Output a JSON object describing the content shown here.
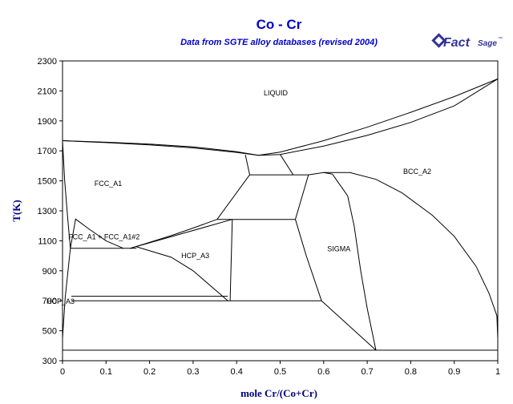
{
  "colors": {
    "title": "#0000cc",
    "axis_label": "#00007f",
    "logo": "#333399",
    "lines": "#000000"
  },
  "logo": {
    "text_main": "Fact",
    "text_small": "Sage",
    "mark": "™",
    "icon": "factsage-logo-icon"
  },
  "chart_data": {
    "type": "phase-diagram",
    "title": "Co - Cr",
    "subtitle": "Data from SGTE alloy databases (revised 2004)",
    "xlabel": "mole Cr/(Co+Cr)",
    "ylabel": "T(K)",
    "xlim": [
      0,
      1
    ],
    "ylim": [
      300,
      2300
    ],
    "xticks": [
      0,
      0.1,
      0.2,
      0.3,
      0.4,
      0.5,
      0.6,
      0.7,
      0.8,
      0.9,
      1
    ],
    "xtick_labels": [
      "0",
      "0.1",
      "0.2",
      "0.3",
      "0.4",
      "0.5",
      "0.6",
      "0.7",
      "0.8",
      "0.9",
      "1"
    ],
    "yticks": [
      300,
      500,
      700,
      900,
      1100,
      1300,
      1500,
      1700,
      1900,
      2100,
      2300
    ],
    "ytick_labels": [
      "300",
      "500",
      "700",
      "900",
      "1100",
      "1300",
      "1500",
      "1700",
      "1900",
      "2100",
      "2300"
    ],
    "grid": false,
    "regions": [
      {
        "label": "LIQUID",
        "x": 0.49,
        "y": 2070
      },
      {
        "label": "FCC_A1",
        "x": 0.105,
        "y": 1465
      },
      {
        "label": "BCC_A2",
        "x": 0.815,
        "y": 1545
      },
      {
        "label": "FCC_A1 + FCC_A1#2",
        "x": 0.05,
        "y": 1110
      },
      {
        "label": "HCP_A3",
        "x": 0.305,
        "y": 985
      },
      {
        "label": "SIGMA",
        "x": 0.635,
        "y": 1030
      },
      {
        "label": "HCP_A3",
        "x": 0.0,
        "y": 680
      }
    ],
    "curves": [
      {
        "name": "liquidus",
        "points": [
          [
            0,
            1768
          ],
          [
            0.1,
            1758
          ],
          [
            0.2,
            1745
          ],
          [
            0.3,
            1727
          ],
          [
            0.4,
            1694
          ],
          [
            0.45,
            1670
          ],
          [
            0.5,
            1692
          ],
          [
            0.6,
            1768
          ],
          [
            0.7,
            1858
          ],
          [
            0.8,
            1957
          ],
          [
            0.9,
            2062
          ],
          [
            1,
            2180
          ]
        ]
      },
      {
        "name": "solidus-left",
        "points": [
          [
            0,
            1768
          ],
          [
            0.1,
            1755
          ],
          [
            0.2,
            1740
          ],
          [
            0.3,
            1720
          ],
          [
            0.4,
            1690
          ],
          [
            0.45,
            1670
          ]
        ]
      },
      {
        "name": "solidus-right",
        "points": [
          [
            0.45,
            1670
          ],
          [
            0.5,
            1676
          ],
          [
            0.6,
            1732
          ],
          [
            0.7,
            1803
          ],
          [
            0.8,
            1890
          ],
          [
            0.9,
            2000
          ],
          [
            1,
            2180
          ]
        ]
      },
      {
        "name": "fcc-boundary-upper",
        "points": [
          [
            0.42,
            1674
          ],
          [
            0.43,
            1540
          ]
        ]
      },
      {
        "name": "fcc-liquid-bcc-eutectic",
        "points": [
          [
            0.43,
            1540
          ],
          [
            0.565,
            1540
          ]
        ]
      },
      {
        "name": "liquid-bcc-small",
        "points": [
          [
            0.5,
            1676
          ],
          [
            0.53,
            1540
          ]
        ]
      },
      {
        "name": "fcc-sigma-upper",
        "points": [
          [
            0.43,
            1540
          ],
          [
            0.355,
            1243
          ]
        ]
      },
      {
        "name": "sigma-left-upper",
        "points": [
          [
            0.565,
            1540
          ],
          [
            0.535,
            1243
          ]
        ]
      },
      {
        "name": "fcc-hcp-eutectoid",
        "points": [
          [
            0.355,
            1243
          ],
          [
            0.535,
            1243
          ]
        ]
      },
      {
        "name": "sigma-upper-dome",
        "points": [
          [
            0.565,
            1540
          ],
          [
            0.6,
            1555
          ],
          [
            0.62,
            1545
          ]
        ]
      },
      {
        "name": "bcc-solvus",
        "points": [
          [
            0.6,
            1555
          ],
          [
            0.66,
            1555
          ],
          [
            0.72,
            1510
          ],
          [
            0.78,
            1420
          ],
          [
            0.85,
            1270
          ],
          [
            0.9,
            1130
          ],
          [
            0.95,
            930
          ],
          [
            0.98,
            750
          ],
          [
            0.998,
            600
          ],
          [
            1,
            450
          ]
        ]
      },
      {
        "name": "sigma-right",
        "points": [
          [
            0.62,
            1545
          ],
          [
            0.655,
            1400
          ],
          [
            0.67,
            1200
          ],
          [
            0.685,
            900
          ],
          [
            0.7,
            650
          ],
          [
            0.72,
            370
          ]
        ]
      },
      {
        "name": "sigma-left-lower",
        "points": [
          [
            0.535,
            1243
          ],
          [
            0.56,
            1000
          ],
          [
            0.595,
            700
          ],
          [
            0.72,
            370
          ]
        ]
      },
      {
        "name": "hcp-fcc-line",
        "points": [
          [
            0.155,
            1050
          ],
          [
            0.2,
            1090
          ],
          [
            0.25,
            1135
          ],
          [
            0.3,
            1185
          ],
          [
            0.355,
            1243
          ]
        ]
      },
      {
        "name": "hcp-fcc-lower",
        "points": [
          [
            0.17,
            1060
          ],
          [
            0.25,
            990
          ],
          [
            0.3,
            900
          ],
          [
            0.38,
            700
          ]
        ]
      },
      {
        "name": "hcp-field-right",
        "points": [
          [
            0.39,
            1243
          ],
          [
            0.385,
            700
          ]
        ]
      },
      {
        "name": "hcp-field-top",
        "points": [
          [
            0.155,
            1050
          ],
          [
            0.39,
            1243
          ]
        ]
      },
      {
        "name": "eutectoid-700",
        "points": [
          [
            0.02,
            700
          ],
          [
            0.595,
            700
          ]
        ]
      },
      {
        "name": "sigma-decomp-370",
        "points": [
          [
            0,
            370
          ],
          [
            1,
            370
          ]
        ]
      },
      {
        "name": "miscibility-gap",
        "points": [
          [
            0.018,
            1050
          ],
          [
            0.03,
            1245
          ],
          [
            0.06,
            1180
          ],
          [
            0.1,
            1100
          ],
          [
            0.14,
            1050
          ]
        ]
      },
      {
        "name": "miscibility-base",
        "points": [
          [
            0.018,
            1050
          ],
          [
            0.17,
            1050
          ]
        ]
      },
      {
        "name": "fcc-left-boundary",
        "points": [
          [
            0,
            1768
          ],
          [
            0.005,
            1500
          ],
          [
            0.012,
            1250
          ],
          [
            0.018,
            1050
          ]
        ]
      },
      {
        "name": "hcp-left-boundary",
        "points": [
          [
            0,
            450
          ],
          [
            0.006,
            720
          ],
          [
            0.018,
            1050
          ]
        ]
      },
      {
        "name": "hcp-line-730",
        "points": [
          [
            0.02,
            730
          ],
          [
            0.38,
            730
          ]
        ]
      }
    ]
  }
}
